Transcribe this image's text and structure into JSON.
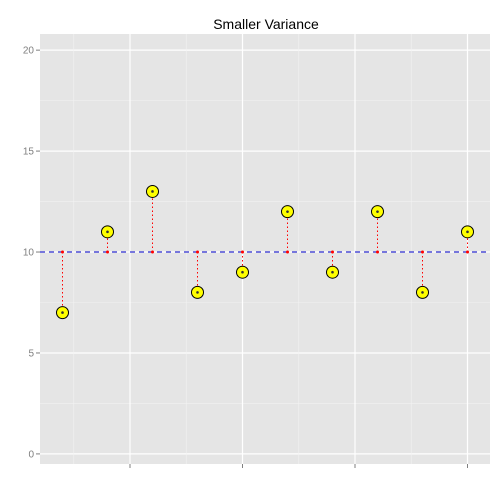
{
  "chart_data": {
    "type": "scatter",
    "title": "Smaller Variance",
    "xlabel": "",
    "ylabel": "",
    "x": [
      1,
      2,
      3,
      4,
      5,
      6,
      7,
      8,
      9,
      10
    ],
    "y": [
      7,
      11,
      13,
      8,
      9,
      12,
      9,
      12,
      8,
      11
    ],
    "reference_line": {
      "y": 10,
      "color": "#0000cc",
      "style": "dashed"
    },
    "residual_lines": {
      "color": "#ff0000",
      "style": "dotted"
    },
    "point_fill": "#ffff00",
    "point_stroke": "#000000",
    "ylim": [
      -0.5,
      20.8
    ],
    "xlim": [
      0.5,
      10.5
    ],
    "yticks": [
      0,
      5,
      10,
      15,
      20
    ],
    "grid": true,
    "panel_background": "#e5e5e5",
    "legend": "none"
  }
}
